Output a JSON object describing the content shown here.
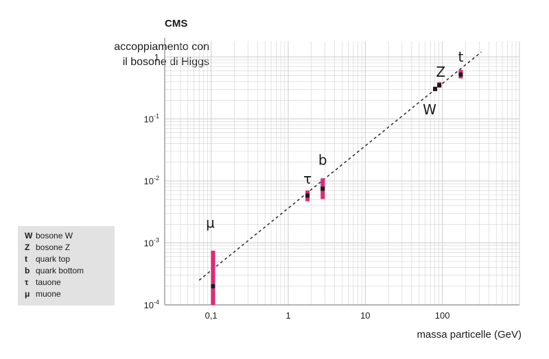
{
  "chart_data": {
    "type": "scatter",
    "brand": "CMS",
    "ylabel_line1": "accoppiamento con",
    "ylabel_line2": "il bosone di Higgs",
    "xlabel": "massa particelle (GeV)",
    "xscale": "log",
    "yscale": "log",
    "xlim": [
      0.025,
      1000
    ],
    "ylim": [
      0.0001,
      1.8
    ],
    "grid": true,
    "x_ticks": [
      {
        "value": 0.1,
        "label": "0,1"
      },
      {
        "value": 1,
        "label": "1"
      },
      {
        "value": 10,
        "label": "10"
      },
      {
        "value": 100,
        "label": "100"
      }
    ],
    "y_ticks": [
      {
        "value": 1,
        "base": "1",
        "exp": ""
      },
      {
        "value": 0.1,
        "base": "10",
        "exp": "-1"
      },
      {
        "value": 0.01,
        "base": "10",
        "exp": "-2"
      },
      {
        "value": 0.001,
        "base": "10",
        "exp": "-3"
      },
      {
        "value": 0.0001,
        "base": "10",
        "exp": "-4"
      }
    ],
    "points": [
      {
        "symbol": "μ",
        "x": 0.106,
        "y": 0.0002,
        "low": 0.0001,
        "high": 0.00075
      },
      {
        "symbol": "τ",
        "x": 1.78,
        "y": 0.0058,
        "low": 0.0047,
        "high": 0.007
      },
      {
        "symbol": "b",
        "x": 2.8,
        "y": 0.0075,
        "low": 0.0051,
        "high": 0.011
      },
      {
        "symbol": "W",
        "x": 80.4,
        "y": 0.305,
        "low": 0.28,
        "high": 0.33
      },
      {
        "symbol": "Z",
        "x": 91.2,
        "y": 0.35,
        "low": 0.32,
        "high": 0.39
      },
      {
        "symbol": "t",
        "x": 173,
        "y": 0.52,
        "low": 0.45,
        "high": 0.62
      }
    ],
    "trend_line": {
      "x": [
        0.07,
        320
      ],
      "y": [
        0.00025,
        1.2
      ],
      "style": "dashed"
    },
    "colors": {
      "error_bar": "#e0287a",
      "marker": "#1a1a1a",
      "grid": "#d0d0d0",
      "trend": "#333333"
    }
  },
  "legend": {
    "items": [
      {
        "symbol": "W",
        "label": "bosone W"
      },
      {
        "symbol": "Z",
        "label": "bosone Z"
      },
      {
        "symbol": "t",
        "label": "quark top"
      },
      {
        "symbol": "b",
        "label": "quark bottom"
      },
      {
        "symbol": "τ",
        "label": "tauone"
      },
      {
        "symbol": "μ",
        "label": "muone"
      }
    ]
  }
}
